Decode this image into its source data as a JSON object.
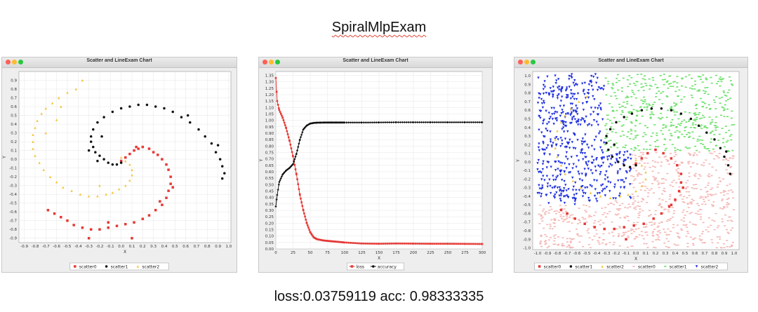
{
  "heading": "SpiralMlpExam",
  "footer": "loss:0.03759119 acc: 0.98333335",
  "colors": {
    "red": "#e53935",
    "black": "#111111",
    "yellow": "#f3c53a",
    "pink": "#f4b7b5",
    "green": "#6de06a",
    "blue": "#1e2fe0"
  },
  "chart_data": [
    {
      "type": "scatter",
      "window_title": "Scatter and LineExam Chart",
      "title": "",
      "xlabel": "X",
      "ylabel": "Y",
      "xlim": [
        -0.95,
        1.02
      ],
      "ylim": [
        -0.95,
        1.0
      ],
      "xticks": [
        "-0.9",
        "-0.8",
        "-0.7",
        "-0.6",
        "-0.5",
        "-0.4",
        "-0.3",
        "-0.2",
        "-0.1",
        "0.0",
        "0.1",
        "0.2",
        "0.3",
        "0.4",
        "0.5",
        "0.6",
        "0.7",
        "0.8",
        "0.9",
        "1.0"
      ],
      "yticks": [
        "0.9",
        "0.8",
        "0.7",
        "0.6",
        "0.5",
        "0.4",
        "0.3",
        "0.2",
        "0.1",
        "0.0",
        "-0.1",
        "-0.2",
        "-0.3",
        "-0.4",
        "-0.5",
        "-0.6",
        "-0.7",
        "-0.8",
        "-0.9"
      ],
      "legend": [
        "scatter0",
        "scatter1",
        "scatter2"
      ],
      "series": [
        {
          "name": "scatter0",
          "marker": "square",
          "color": "red",
          "points": [
            [
              0.0,
              -0.02
            ],
            [
              0.04,
              0.02
            ],
            [
              0.08,
              0.06
            ],
            [
              0.12,
              0.1
            ],
            [
              0.16,
              0.12
            ],
            [
              0.2,
              0.14
            ],
            [
              0.26,
              0.12
            ],
            [
              0.3,
              0.08
            ],
            [
              0.34,
              0.05
            ],
            [
              0.38,
              0.0
            ],
            [
              0.42,
              -0.06
            ],
            [
              0.44,
              -0.12
            ],
            [
              0.46,
              -0.2
            ],
            [
              0.46,
              -0.28
            ],
            [
              0.44,
              -0.36
            ],
            [
              0.42,
              -0.44
            ],
            [
              0.38,
              -0.52
            ],
            [
              0.32,
              -0.58
            ],
            [
              0.26,
              -0.64
            ],
            [
              0.2,
              -0.68
            ],
            [
              0.12,
              -0.72
            ],
            [
              0.04,
              -0.74
            ],
            [
              -0.04,
              -0.76
            ],
            [
              -0.12,
              -0.78
            ],
            [
              -0.2,
              -0.8
            ],
            [
              -0.28,
              -0.8
            ],
            [
              -0.36,
              -0.78
            ],
            [
              -0.44,
              -0.75
            ],
            [
              -0.5,
              -0.7
            ],
            [
              -0.56,
              -0.66
            ],
            [
              -0.62,
              -0.62
            ],
            [
              -0.68,
              -0.58
            ],
            [
              0.48,
              -0.32
            ],
            [
              0.36,
              -0.48
            ],
            [
              0.14,
              0.14
            ],
            [
              0.1,
              -0.9
            ],
            [
              -0.3,
              -0.9
            ],
            [
              -0.12,
              -0.72
            ]
          ]
        },
        {
          "name": "scatter1",
          "marker": "circle",
          "color": "black",
          "points": [
            [
              0.0,
              -0.04
            ],
            [
              -0.04,
              -0.06
            ],
            [
              -0.08,
              -0.06
            ],
            [
              -0.12,
              -0.04
            ],
            [
              -0.16,
              0.0
            ],
            [
              -0.2,
              0.04
            ],
            [
              -0.24,
              0.08
            ],
            [
              -0.26,
              0.14
            ],
            [
              -0.28,
              0.2
            ],
            [
              -0.28,
              0.26
            ],
            [
              -0.26,
              0.34
            ],
            [
              -0.22,
              0.42
            ],
            [
              -0.16,
              0.48
            ],
            [
              -0.08,
              0.54
            ],
            [
              0.0,
              0.58
            ],
            [
              0.08,
              0.6
            ],
            [
              0.16,
              0.62
            ],
            [
              0.24,
              0.62
            ],
            [
              0.32,
              0.6
            ],
            [
              0.4,
              0.58
            ],
            [
              0.48,
              0.54
            ],
            [
              0.56,
              0.48
            ],
            [
              0.64,
              0.42
            ],
            [
              0.72,
              0.34
            ],
            [
              0.78,
              0.26
            ],
            [
              0.84,
              0.18
            ],
            [
              0.88,
              0.08
            ],
            [
              0.92,
              0.0
            ],
            [
              0.94,
              -0.08
            ],
            [
              0.96,
              -0.16
            ],
            [
              -0.3,
              0.1
            ],
            [
              -0.18,
              0.26
            ],
            [
              0.62,
              0.5
            ],
            [
              0.94,
              -0.22
            ],
            [
              0.9,
              0.16
            ],
            [
              -0.22,
              -0.02
            ]
          ]
        },
        {
          "name": "scatter2",
          "marker": "triangle",
          "color": "yellow",
          "points": [
            [
              0.0,
              0.02
            ],
            [
              0.04,
              -0.02
            ],
            [
              0.08,
              -0.06
            ],
            [
              0.1,
              -0.12
            ],
            [
              0.1,
              -0.18
            ],
            [
              0.08,
              -0.24
            ],
            [
              0.04,
              -0.3
            ],
            [
              -0.02,
              -0.34
            ],
            [
              -0.08,
              -0.38
            ],
            [
              -0.14,
              -0.4
            ],
            [
              -0.22,
              -0.42
            ],
            [
              -0.3,
              -0.42
            ],
            [
              -0.38,
              -0.4
            ],
            [
              -0.46,
              -0.36
            ],
            [
              -0.54,
              -0.32
            ],
            [
              -0.6,
              -0.26
            ],
            [
              -0.66,
              -0.2
            ],
            [
              -0.72,
              -0.12
            ],
            [
              -0.76,
              -0.04
            ],
            [
              -0.8,
              0.04
            ],
            [
              -0.82,
              0.12
            ],
            [
              -0.82,
              0.2
            ],
            [
              -0.82,
              0.28
            ],
            [
              -0.8,
              0.36
            ],
            [
              -0.78,
              0.44
            ],
            [
              -0.74,
              0.52
            ],
            [
              -0.7,
              0.58
            ],
            [
              -0.64,
              0.64
            ],
            [
              -0.58,
              0.7
            ],
            [
              -0.5,
              0.76
            ],
            [
              -0.42,
              0.8
            ],
            [
              -0.36,
              0.9
            ],
            [
              -0.7,
              0.3
            ],
            [
              -0.56,
              0.6
            ],
            [
              -0.2,
              -0.3
            ],
            [
              -0.6,
              0.45
            ]
          ]
        }
      ]
    },
    {
      "type": "line",
      "window_title": "Scatter and LineExam Chart",
      "title": "",
      "xlabel": "X",
      "ylabel": "Y",
      "xlim": [
        0,
        300
      ],
      "ylim": [
        0.0,
        1.38
      ],
      "xticks": [
        "0",
        "25",
        "50",
        "75",
        "100",
        "125",
        "150",
        "175",
        "200",
        "225",
        "250",
        "275",
        "300"
      ],
      "yticks": [
        "1.35",
        "1.30",
        "1.25",
        "1.20",
        "1.15",
        "1.10",
        "1.05",
        "1.00",
        "0.95",
        "0.90",
        "0.85",
        "0.80",
        "0.75",
        "0.70",
        "0.65",
        "0.60",
        "0.55",
        "0.50",
        "0.45",
        "0.40",
        "0.35",
        "0.30",
        "0.25",
        "0.20",
        "0.15",
        "0.10",
        "0.05",
        "0.00"
      ],
      "legend": [
        "loss",
        "accuracy"
      ],
      "series": [
        {
          "name": "loss",
          "color": "red",
          "x": [
            0,
            2,
            5,
            10,
            15,
            20,
            25,
            30,
            35,
            40,
            45,
            50,
            55,
            60,
            70,
            80,
            100,
            125,
            150,
            175,
            200,
            225,
            250,
            275,
            300
          ],
          "values": [
            1.33,
            1.15,
            1.08,
            1.02,
            0.94,
            0.84,
            0.72,
            0.58,
            0.42,
            0.3,
            0.2,
            0.13,
            0.09,
            0.075,
            0.065,
            0.06,
            0.05,
            0.042,
            0.04,
            0.042,
            0.041,
            0.04,
            0.04,
            0.039,
            0.038
          ]
        },
        {
          "name": "accuracy",
          "color": "black",
          "x": [
            0,
            2,
            5,
            10,
            15,
            20,
            25,
            30,
            35,
            40,
            45,
            50,
            55,
            60,
            70,
            80,
            100,
            125,
            150,
            175,
            200,
            225,
            250,
            275,
            300
          ],
          "values": [
            0.33,
            0.42,
            0.52,
            0.58,
            0.61,
            0.63,
            0.66,
            0.74,
            0.85,
            0.93,
            0.96,
            0.975,
            0.98,
            0.982,
            0.983,
            0.983,
            0.983,
            0.983,
            0.984,
            0.985,
            0.985,
            0.985,
            0.985,
            0.985,
            0.985
          ]
        }
      ]
    },
    {
      "type": "scatter",
      "window_title": "Scatter and LineExam Chart",
      "title": "",
      "xlabel": "X",
      "ylabel": "Y",
      "xlim": [
        -1.05,
        1.05
      ],
      "ylim": [
        -1.02,
        1.05
      ],
      "xticks": [
        "-1.0",
        "-0.9",
        "-0.8",
        "-0.7",
        "-0.6",
        "-0.5",
        "-0.4",
        "-0.3",
        "-0.2",
        "-0.1",
        "0.0",
        "0.1",
        "0.2",
        "0.3",
        "0.4",
        "0.5",
        "0.6",
        "0.7",
        "0.8",
        "0.9",
        "1.0"
      ],
      "yticks": [
        "1.0",
        "0.9",
        "0.8",
        "0.7",
        "0.6",
        "0.5",
        "0.4",
        "0.3",
        "0.2",
        "0.1",
        "0.0",
        "-0.1",
        "-0.2",
        "-0.3",
        "-0.4",
        "-0.5",
        "-0.6",
        "-0.7",
        "-0.8",
        "-0.9",
        "-1.0"
      ],
      "legend": [
        "scatter0",
        "scatter1",
        "scatter2",
        "scatter0",
        "scatter1",
        "scatter2"
      ],
      "background_regions": [
        {
          "name": "scatter0",
          "color": "pink",
          "region": "lower half (y < -0.05) and right-middle band"
        },
        {
          "name": "scatter1",
          "color": "green",
          "region": "upper right (x > -0.3, y > 0.1)"
        },
        {
          "name": "scatter2",
          "color": "blue",
          "region": "left side (x < -0.3, y > -0.5)"
        }
      ],
      "series": [
        {
          "name": "scatter0",
          "marker": "square",
          "color": "red",
          "points": [
            [
              0.0,
              -0.02
            ],
            [
              0.06,
              0.04
            ],
            [
              0.12,
              0.1
            ],
            [
              0.2,
              0.14
            ],
            [
              0.28,
              0.1
            ],
            [
              0.36,
              0.04
            ],
            [
              0.42,
              -0.04
            ],
            [
              0.46,
              -0.14
            ],
            [
              0.46,
              -0.24
            ],
            [
              0.44,
              -0.34
            ],
            [
              0.4,
              -0.44
            ],
            [
              0.34,
              -0.52
            ],
            [
              0.26,
              -0.6
            ],
            [
              0.18,
              -0.66
            ],
            [
              0.08,
              -0.72
            ],
            [
              -0.02,
              -0.74
            ],
            [
              -0.12,
              -0.76
            ],
            [
              -0.22,
              -0.78
            ],
            [
              -0.32,
              -0.78
            ],
            [
              -0.42,
              -0.76
            ],
            [
              -0.52,
              -0.72
            ],
            [
              -0.62,
              -0.66
            ],
            [
              -0.7,
              -0.6
            ],
            [
              -0.76,
              -0.56
            ],
            [
              0.48,
              -0.3
            ],
            [
              0.36,
              -0.5
            ],
            [
              -0.1,
              -0.9
            ]
          ]
        },
        {
          "name": "scatter1",
          "marker": "circle",
          "color": "black",
          "points": [
            [
              0.0,
              -0.04
            ],
            [
              -0.06,
              -0.06
            ],
            [
              -0.12,
              -0.04
            ],
            [
              -0.18,
              0.0
            ],
            [
              -0.24,
              0.06
            ],
            [
              -0.28,
              0.14
            ],
            [
              -0.3,
              0.22
            ],
            [
              -0.3,
              0.3
            ],
            [
              -0.26,
              0.38
            ],
            [
              -0.2,
              0.46
            ],
            [
              -0.12,
              0.52
            ],
            [
              -0.04,
              0.56
            ],
            [
              0.06,
              0.6
            ],
            [
              0.16,
              0.62
            ],
            [
              0.26,
              0.62
            ],
            [
              0.36,
              0.6
            ],
            [
              0.46,
              0.56
            ],
            [
              0.56,
              0.5
            ],
            [
              0.64,
              0.42
            ],
            [
              0.72,
              0.34
            ],
            [
              0.8,
              0.26
            ],
            [
              0.86,
              0.16
            ],
            [
              0.9,
              0.06
            ],
            [
              0.94,
              -0.04
            ],
            [
              0.96,
              -0.14
            ],
            [
              0.92,
              0.12
            ],
            [
              -0.22,
              0.2
            ]
          ]
        },
        {
          "name": "scatter2",
          "marker": "triangle",
          "color": "yellow",
          "points": [
            [
              0.0,
              0.02
            ],
            [
              0.06,
              -0.04
            ],
            [
              0.1,
              -0.12
            ],
            [
              0.1,
              -0.2
            ],
            [
              0.06,
              -0.28
            ],
            [
              0.0,
              -0.34
            ],
            [
              -0.08,
              -0.38
            ],
            [
              -0.16,
              -0.4
            ],
            [
              -0.26,
              -0.42
            ],
            [
              -0.36,
              -0.4
            ],
            [
              -0.46,
              -0.36
            ],
            [
              -0.56,
              -0.3
            ],
            [
              -0.64,
              -0.22
            ],
            [
              -0.72,
              -0.14
            ],
            [
              -0.76,
              -0.04
            ],
            [
              -0.8,
              0.06
            ],
            [
              -0.82,
              0.16
            ],
            [
              -0.82,
              0.26
            ],
            [
              -0.8,
              0.36
            ],
            [
              -0.76,
              0.46
            ],
            [
              -0.72,
              0.54
            ],
            [
              -0.66,
              0.62
            ],
            [
              -0.58,
              0.7
            ],
            [
              -0.5,
              0.76
            ]
          ]
        }
      ]
    }
  ]
}
